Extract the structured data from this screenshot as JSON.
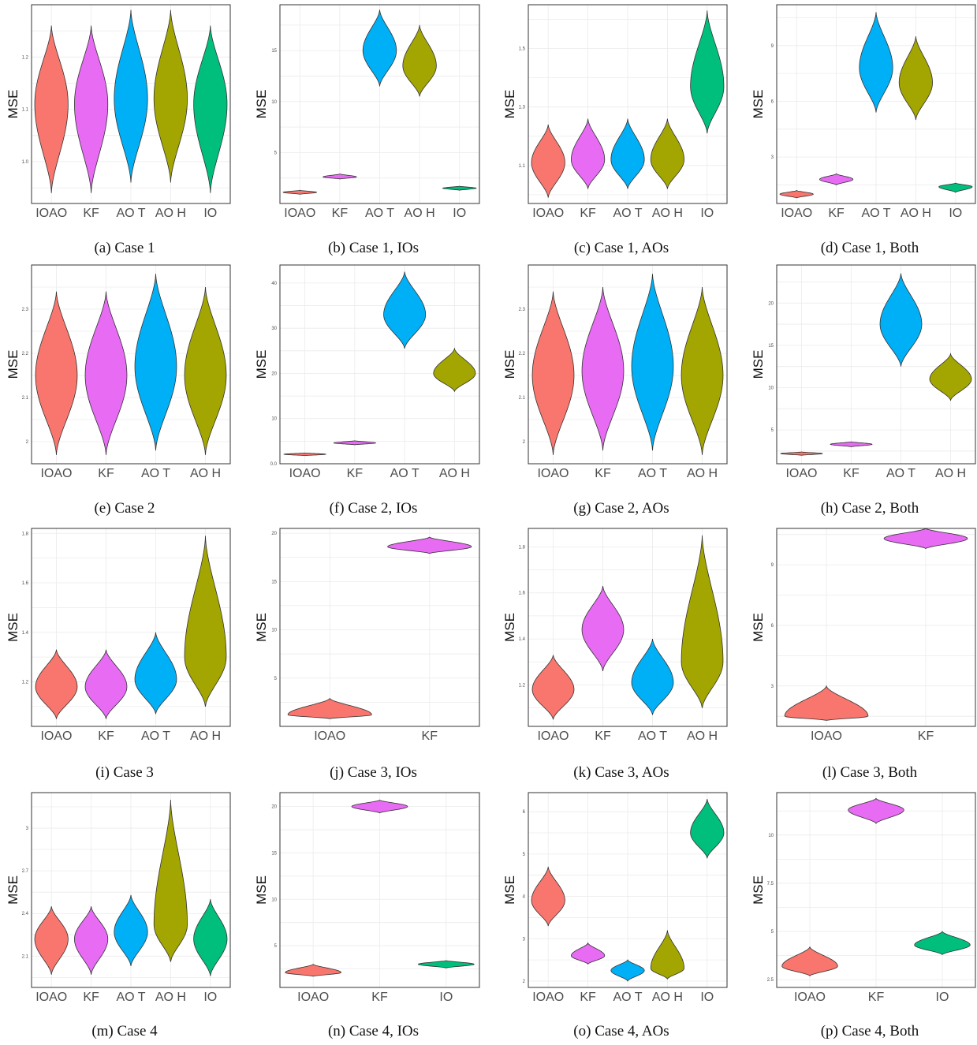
{
  "figure": {
    "palette": {
      "IOAO": "#F8766D",
      "KF": "#E76BF3",
      "AO T": "#00B0F6",
      "AO H": "#A3A500",
      "IO": "#00BF7D"
    }
  },
  "chart_data": [
    {
      "type": "violin",
      "caption": "(a) Case 1",
      "ylabel": "MSE",
      "ylim": [
        0.92,
        1.3
      ],
      "yticks": [
        1.0,
        1.1,
        1.2
      ],
      "categories": [
        "IOAO",
        "KF",
        "AO T",
        "AO H",
        "IO"
      ],
      "series": [
        {
          "name": "IOAO",
          "min": 0.94,
          "mode": 1.11,
          "max": 1.26
        },
        {
          "name": "KF",
          "min": 0.94,
          "mode": 1.11,
          "max": 1.26
        },
        {
          "name": "AO T",
          "min": 0.96,
          "mode": 1.12,
          "max": 1.29
        },
        {
          "name": "AO H",
          "min": 0.96,
          "mode": 1.12,
          "max": 1.29
        },
        {
          "name": "IO",
          "min": 0.94,
          "mode": 1.11,
          "max": 1.26
        }
      ]
    },
    {
      "type": "violin",
      "caption": "(b) Case 1, IOs",
      "ylabel": "MSE",
      "ylim": [
        0,
        19.5
      ],
      "yticks": [
        5,
        10,
        15
      ],
      "categories": [
        "IOAO",
        "KF",
        "AO T",
        "AO H",
        "IO"
      ],
      "series": [
        {
          "name": "IOAO",
          "min": 0.9,
          "mode": 1.1,
          "max": 1.3
        },
        {
          "name": "KF",
          "min": 2.4,
          "mode": 2.6,
          "max": 2.9
        },
        {
          "name": "AO T",
          "min": 11.5,
          "mode": 15.0,
          "max": 19.0
        },
        {
          "name": "AO H",
          "min": 10.5,
          "mode": 13.5,
          "max": 17.5
        },
        {
          "name": "IO",
          "min": 1.3,
          "mode": 1.5,
          "max": 1.7
        }
      ]
    },
    {
      "type": "violin",
      "caption": "(c) Case 1, AOs",
      "ylabel": "MSE",
      "ylim": [
        0.97,
        1.65
      ],
      "yticks": [
        1.1,
        1.3,
        1.5
      ],
      "categories": [
        "IOAO",
        "KF",
        "AO T",
        "AO H",
        "IO"
      ],
      "series": [
        {
          "name": "IOAO",
          "min": 0.99,
          "mode": 1.11,
          "max": 1.24
        },
        {
          "name": "KF",
          "min": 1.02,
          "mode": 1.12,
          "max": 1.26
        },
        {
          "name": "AO T",
          "min": 1.02,
          "mode": 1.12,
          "max": 1.26
        },
        {
          "name": "AO H",
          "min": 1.02,
          "mode": 1.12,
          "max": 1.26
        },
        {
          "name": "IO",
          "min": 1.21,
          "mode": 1.37,
          "max": 1.63
        }
      ]
    },
    {
      "type": "violin",
      "caption": "(d) Case 1, Both",
      "ylabel": "MSE",
      "ylim": [
        0.5,
        11.2
      ],
      "yticks": [
        3,
        6,
        9
      ],
      "categories": [
        "IOAO",
        "KF",
        "AO T",
        "AO H",
        "IO"
      ],
      "series": [
        {
          "name": "IOAO",
          "min": 0.8,
          "mode": 1.0,
          "max": 1.2
        },
        {
          "name": "KF",
          "min": 1.5,
          "mode": 1.8,
          "max": 2.1
        },
        {
          "name": "AO T",
          "min": 5.4,
          "mode": 7.8,
          "max": 10.8
        },
        {
          "name": "AO H",
          "min": 5.0,
          "mode": 7.0,
          "max": 9.5
        },
        {
          "name": "IO",
          "min": 1.1,
          "mode": 1.4,
          "max": 1.6
        }
      ]
    },
    {
      "type": "violin",
      "caption": "(e) Case 2",
      "ylabel": "MSE",
      "ylim": [
        1.95,
        2.4
      ],
      "yticks": [
        2.0,
        2.1,
        2.2,
        2.3
      ],
      "categories": [
        "IOAO",
        "KF",
        "AO T",
        "AO H"
      ],
      "series": [
        {
          "name": "IOAO",
          "min": 1.97,
          "mode": 2.15,
          "max": 2.34
        },
        {
          "name": "KF",
          "min": 1.97,
          "mode": 2.15,
          "max": 2.34
        },
        {
          "name": "AO T",
          "min": 1.98,
          "mode": 2.17,
          "max": 2.38
        },
        {
          "name": "AO H",
          "min": 1.97,
          "mode": 2.15,
          "max": 2.35
        }
      ]
    },
    {
      "type": "violin",
      "caption": "(f) Case 2, IOs",
      "ylabel": "MSE",
      "ylim": [
        0,
        44
      ],
      "yticks": [
        0,
        10,
        20,
        30,
        40
      ],
      "categories": [
        "IOAO",
        "KF",
        "AO T",
        "AO H"
      ],
      "series": [
        {
          "name": "IOAO",
          "min": 1.8,
          "mode": 2.1,
          "max": 2.4
        },
        {
          "name": "KF",
          "min": 4.2,
          "mode": 4.6,
          "max": 5.1
        },
        {
          "name": "AO T",
          "min": 25.5,
          "mode": 33.0,
          "max": 42.5
        },
        {
          "name": "AO H",
          "min": 16.0,
          "mode": 20.0,
          "max": 25.5
        }
      ]
    },
    {
      "type": "violin",
      "caption": "(g) Case 2, AOs",
      "ylabel": "MSE",
      "ylim": [
        1.95,
        2.4
      ],
      "yticks": [
        2.0,
        2.1,
        2.2,
        2.3
      ],
      "categories": [
        "IOAO",
        "KF",
        "AO T",
        "AO H"
      ],
      "series": [
        {
          "name": "IOAO",
          "min": 1.97,
          "mode": 2.15,
          "max": 2.34
        },
        {
          "name": "KF",
          "min": 1.98,
          "mode": 2.16,
          "max": 2.35
        },
        {
          "name": "AO T",
          "min": 1.98,
          "mode": 2.17,
          "max": 2.38
        },
        {
          "name": "AO H",
          "min": 1.97,
          "mode": 2.15,
          "max": 2.35
        }
      ]
    },
    {
      "type": "violin",
      "caption": "(h) Case 2, Both",
      "ylabel": "MSE",
      "ylim": [
        1,
        24.5
      ],
      "yticks": [
        5,
        10,
        15,
        20
      ],
      "categories": [
        "IOAO",
        "KF",
        "AO T",
        "AO H"
      ],
      "series": [
        {
          "name": "IOAO",
          "min": 2.0,
          "mode": 2.2,
          "max": 2.4
        },
        {
          "name": "KF",
          "min": 3.0,
          "mode": 3.3,
          "max": 3.6
        },
        {
          "name": "AO T",
          "min": 12.5,
          "mode": 17.5,
          "max": 23.5
        },
        {
          "name": "AO H",
          "min": 8.5,
          "mode": 11.0,
          "max": 14.0
        }
      ]
    },
    {
      "type": "violin",
      "caption": "(i) Case 3",
      "ylabel": "MSE",
      "ylim": [
        1.02,
        1.82
      ],
      "yticks": [
        1.2,
        1.4,
        1.6,
        1.8
      ],
      "categories": [
        "IOAO",
        "KF",
        "AO T",
        "AO H"
      ],
      "series": [
        {
          "name": "IOAO",
          "min": 1.05,
          "mode": 1.18,
          "max": 1.33
        },
        {
          "name": "KF",
          "min": 1.05,
          "mode": 1.18,
          "max": 1.33
        },
        {
          "name": "AO T",
          "min": 1.07,
          "mode": 1.21,
          "max": 1.4
        },
        {
          "name": "AO H",
          "min": 1.1,
          "mode": 1.3,
          "max": 1.79
        }
      ]
    },
    {
      "type": "violin",
      "caption": "(j) Case 3, IOs",
      "ylabel": "MSE",
      "ylim": [
        0,
        20.5
      ],
      "yticks": [
        5,
        10,
        15,
        20
      ],
      "categories": [
        "IOAO",
        "KF"
      ],
      "series": [
        {
          "name": "IOAO",
          "min": 0.8,
          "mode": 1.2,
          "max": 2.9
        },
        {
          "name": "KF",
          "min": 17.9,
          "mode": 18.6,
          "max": 19.6
        }
      ]
    },
    {
      "type": "violin",
      "caption": "(k) Case 3, AOs",
      "ylabel": "MSE",
      "ylim": [
        1.02,
        1.88
      ],
      "yticks": [
        1.2,
        1.4,
        1.6,
        1.8
      ],
      "categories": [
        "IOAO",
        "KF",
        "AO T",
        "AO H"
      ],
      "series": [
        {
          "name": "IOAO",
          "min": 1.05,
          "mode": 1.18,
          "max": 1.33
        },
        {
          "name": "KF",
          "min": 1.26,
          "mode": 1.44,
          "max": 1.63
        },
        {
          "name": "AO T",
          "min": 1.07,
          "mode": 1.21,
          "max": 1.4
        },
        {
          "name": "AO H",
          "min": 1.1,
          "mode": 1.3,
          "max": 1.85
        }
      ]
    },
    {
      "type": "violin",
      "caption": "(l) Case 3, Both",
      "ylabel": "MSE",
      "ylim": [
        1,
        10.8
      ],
      "yticks": [
        3,
        6,
        9
      ],
      "categories": [
        "IOAO",
        "KF"
      ],
      "series": [
        {
          "name": "IOAO",
          "min": 1.3,
          "mode": 1.5,
          "max": 3.0
        },
        {
          "name": "KF",
          "min": 9.8,
          "mode": 10.3,
          "max": 10.8
        }
      ]
    },
    {
      "type": "violin",
      "caption": "(m) Case 4",
      "ylabel": "MSE",
      "ylim": [
        1.88,
        3.25
      ],
      "yticks": [
        2.1,
        2.4,
        2.7,
        3.0
      ],
      "categories": [
        "IOAO",
        "KF",
        "AO T",
        "AO H",
        "IO"
      ],
      "series": [
        {
          "name": "IOAO",
          "min": 1.97,
          "mode": 2.22,
          "max": 2.45
        },
        {
          "name": "KF",
          "min": 1.97,
          "mode": 2.22,
          "max": 2.45
        },
        {
          "name": "AO T",
          "min": 2.03,
          "mode": 2.27,
          "max": 2.53
        },
        {
          "name": "AO H",
          "min": 2.06,
          "mode": 2.32,
          "max": 3.2
        },
        {
          "name": "IO",
          "min": 1.96,
          "mode": 2.22,
          "max": 2.5
        }
      ]
    },
    {
      "type": "violin",
      "caption": "(n) Case 4, IOs",
      "ylabel": "MSE",
      "ylim": [
        0.5,
        21.5
      ],
      "yticks": [
        5,
        10,
        15,
        20
      ],
      "categories": [
        "IOAO",
        "KF",
        "IO"
      ],
      "series": [
        {
          "name": "IOAO",
          "min": 1.7,
          "mode": 2.1,
          "max": 3.0
        },
        {
          "name": "KF",
          "min": 19.3,
          "mode": 20.0,
          "max": 20.7
        },
        {
          "name": "IO",
          "min": 2.6,
          "mode": 3.0,
          "max": 3.4
        }
      ]
    },
    {
      "type": "violin",
      "caption": "(o) Case 4, AOs",
      "ylabel": "MSE",
      "ylim": [
        1.85,
        6.45
      ],
      "yticks": [
        2,
        3,
        4,
        5,
        6
      ],
      "categories": [
        "IOAO",
        "KF",
        "AO T",
        "AO H",
        "IO"
      ],
      "series": [
        {
          "name": "IOAO",
          "min": 3.3,
          "mode": 3.9,
          "max": 4.7
        },
        {
          "name": "KF",
          "min": 2.4,
          "mode": 2.6,
          "max": 2.9
        },
        {
          "name": "AO T",
          "min": 2.0,
          "mode": 2.25,
          "max": 2.5
        },
        {
          "name": "AO H",
          "min": 2.05,
          "mode": 2.3,
          "max": 3.2
        },
        {
          "name": "IO",
          "min": 4.9,
          "mode": 5.5,
          "max": 6.3
        }
      ]
    },
    {
      "type": "violin",
      "caption": "(p) Case 4, Both",
      "ylabel": "MSE",
      "ylim": [
        2.1,
        12.2
      ],
      "yticks": [
        2.5,
        5.0,
        7.5,
        10.0
      ],
      "categories": [
        "IOAO",
        "KF",
        "IO"
      ],
      "series": [
        {
          "name": "IOAO",
          "min": 2.7,
          "mode": 3.2,
          "max": 4.2
        },
        {
          "name": "KF",
          "min": 10.6,
          "mode": 11.3,
          "max": 11.9
        },
        {
          "name": "IO",
          "min": 3.8,
          "mode": 4.3,
          "max": 5.0
        }
      ]
    }
  ]
}
